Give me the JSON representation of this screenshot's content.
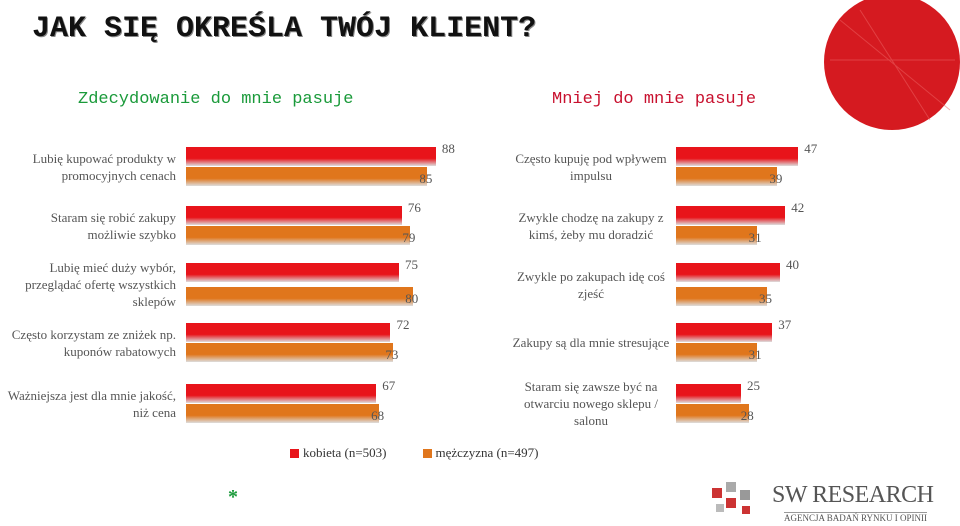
{
  "header": {
    "title": "JAK SIĘ OKREŚLA TWÓJ KLIENT?"
  },
  "chart_data": [
    {
      "type": "hbar",
      "title": "Zdecydowanie do mnie pasuje",
      "categories": [
        "Lubię kupować produkty w promocyjnych cenach",
        "Staram się robić zakupy możliwie szybko",
        "Lubię mieć duży wybór, przeglądać ofertę wszystkich sklepów",
        "Często korzystam ze zniżek np. kuponów rabatowych",
        "Ważniejsza jest dla mnie jakość, niż cena"
      ],
      "series": [
        {
          "name": "kobieta (n=503)",
          "color": "#e8141a",
          "values": [
            88,
            76,
            75,
            72,
            67
          ]
        },
        {
          "name": "mężczyzna (n=497)",
          "color": "#e0761c",
          "values": [
            85,
            79,
            80,
            73,
            68
          ]
        }
      ],
      "xlim": [
        0,
        100
      ]
    },
    {
      "type": "hbar",
      "title": "Mniej do mnie pasuje",
      "categories": [
        "Często kupuję pod wpływem impulsu",
        "Zwykle chodzę na zakupy z kimś, żeby mu doradzić",
        "Zwykle po zakupach idę coś zjeść",
        "Zakupy są dla mnie stresujące",
        "Staram się zawsze być na otwarciu nowego sklepu / salonu"
      ],
      "series": [
        {
          "color": "#e8141a",
          "values": [
            47,
            42,
            40,
            37,
            25
          ]
        },
        {
          "color": "#e0761c",
          "values": [
            39,
            31,
            35,
            31,
            28
          ]
        }
      ],
      "xlim": [
        0,
        100
      ]
    }
  ],
  "footnote": "*",
  "logo": {
    "name": "SW RESEARCH",
    "tagline": "AGENCJA BADAŃ RYNKU I OPINII"
  }
}
